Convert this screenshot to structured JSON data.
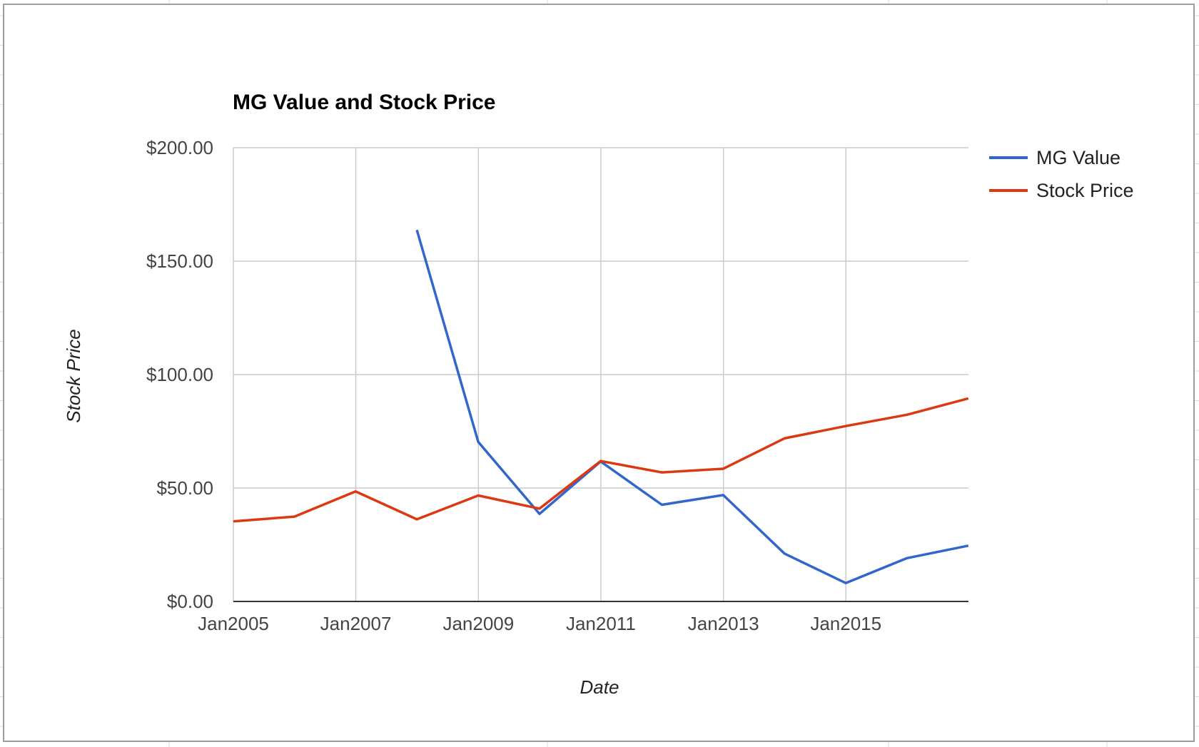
{
  "chart_data": {
    "type": "line",
    "title": "MG Value and Stock Price",
    "xlabel": "Date",
    "ylabel": "Stock Price",
    "x_ticks": [
      "Jan2005",
      "Jan2007",
      "Jan2009",
      "Jan2011",
      "Jan2013",
      "Jan2015"
    ],
    "y_ticks": [
      "$200.00",
      "$150.00",
      "$100.00",
      "$50.00",
      "$0.00"
    ],
    "y_tick_values": [
      200,
      150,
      100,
      50,
      0
    ],
    "ylim": [
      0,
      200
    ],
    "xlim": [
      "2005-01-01",
      "2017-01-01"
    ],
    "grid": true,
    "legend_position": "right",
    "series": [
      {
        "name": "MG Value",
        "color": "#3366cc",
        "points": [
          {
            "x": "2007-12-31",
            "y": 163.7
          },
          {
            "x": "2008-12-31",
            "y": 70.3
          },
          {
            "x": "2009-12-31",
            "y": 38.6
          },
          {
            "x": "2010-12-31",
            "y": 61.7
          },
          {
            "x": "2011-12-31",
            "y": 42.6
          },
          {
            "x": "2012-12-31",
            "y": 46.9
          },
          {
            "x": "2013-12-31",
            "y": 21.1
          },
          {
            "x": "2014-12-31",
            "y": 8.1
          },
          {
            "x": "2015-12-31",
            "y": 19.1
          },
          {
            "x": "2016-12-31",
            "y": 24.6
          }
        ]
      },
      {
        "name": "Stock Price",
        "color": "#dc3912",
        "points": [
          {
            "x": "2005-01-01",
            "y": 35.3
          },
          {
            "x": "2005-12-31",
            "y": 37.4
          },
          {
            "x": "2006-12-31",
            "y": 48.5
          },
          {
            "x": "2007-12-31",
            "y": 36.2
          },
          {
            "x": "2008-12-31",
            "y": 46.7
          },
          {
            "x": "2009-12-31",
            "y": 40.9
          },
          {
            "x": "2010-12-31",
            "y": 61.9
          },
          {
            "x": "2011-12-31",
            "y": 56.9
          },
          {
            "x": "2012-12-31",
            "y": 58.5
          },
          {
            "x": "2013-12-31",
            "y": 71.9
          },
          {
            "x": "2014-12-31",
            "y": 77.3
          },
          {
            "x": "2015-12-31",
            "y": 82.3
          },
          {
            "x": "2016-12-31",
            "y": 89.5
          }
        ]
      }
    ]
  }
}
